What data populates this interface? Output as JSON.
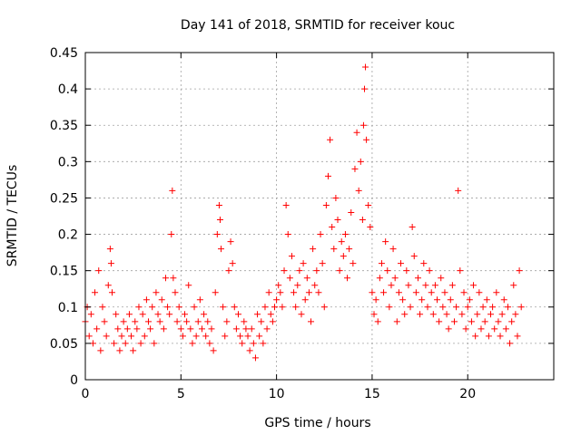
{
  "chart_data": {
    "type": "scatter",
    "title": "Day 141 of 2018, SRMTID for receiver kouc",
    "xlabel": "GPS time / hours",
    "ylabel": "SRMTID / TECUs",
    "xlim": [
      0,
      24.5
    ],
    "ylim": [
      0,
      0.45
    ],
    "xticks": [
      0,
      5,
      10,
      15,
      20
    ],
    "yticks": [
      0,
      0.05,
      0.1,
      0.15,
      0.2,
      0.25,
      0.3,
      0.35,
      0.4,
      0.45
    ],
    "xtick_labels": [
      "0",
      "5",
      "10",
      "15",
      "20"
    ],
    "ytick_labels": [
      "0",
      "0.05",
      "0.1",
      "0.15",
      "0.2",
      "0.25",
      "0.3",
      "0.35",
      "0.4",
      "0.45"
    ],
    "grid": true,
    "marker": "+",
    "color": "#ff0000",
    "series": [
      {
        "name": "SRMTID",
        "x": [
          0.0,
          0.1,
          0.2,
          0.3,
          0.4,
          0.5,
          0.6,
          0.7,
          0.8,
          0.9,
          1.0,
          1.1,
          1.2,
          1.3,
          1.35,
          1.4,
          1.5,
          1.6,
          1.7,
          1.8,
          1.9,
          2.0,
          2.1,
          2.2,
          2.3,
          2.4,
          2.5,
          2.6,
          2.7,
          2.8,
          2.9,
          3.0,
          3.1,
          3.2,
          3.3,
          3.4,
          3.5,
          3.6,
          3.7,
          3.8,
          3.9,
          4.0,
          4.1,
          4.2,
          4.3,
          4.4,
          4.5,
          4.55,
          4.6,
          4.7,
          4.8,
          4.9,
          5.0,
          5.1,
          5.2,
          5.3,
          5.4,
          5.5,
          5.6,
          5.7,
          5.8,
          5.9,
          6.0,
          6.1,
          6.2,
          6.3,
          6.4,
          6.5,
          6.6,
          6.7,
          6.8,
          6.9,
          7.0,
          7.05,
          7.1,
          7.2,
          7.3,
          7.4,
          7.5,
          7.6,
          7.7,
          7.8,
          7.9,
          8.0,
          8.1,
          8.2,
          8.3,
          8.4,
          8.5,
          8.6,
          8.7,
          8.8,
          8.9,
          9.0,
          9.1,
          9.2,
          9.3,
          9.4,
          9.5,
          9.6,
          9.7,
          9.8,
          9.9,
          10.0,
          10.1,
          10.2,
          10.3,
          10.4,
          10.5,
          10.6,
          10.7,
          10.8,
          10.9,
          11.0,
          11.1,
          11.2,
          11.3,
          11.4,
          11.5,
          11.6,
          11.7,
          11.8,
          11.9,
          12.0,
          12.1,
          12.2,
          12.3,
          12.4,
          12.5,
          12.6,
          12.7,
          12.8,
          12.9,
          13.0,
          13.1,
          13.2,
          13.3,
          13.4,
          13.5,
          13.6,
          13.7,
          13.8,
          13.9,
          14.0,
          14.1,
          14.2,
          14.3,
          14.4,
          14.5,
          14.55,
          14.6,
          14.65,
          14.7,
          14.8,
          14.9,
          15.0,
          15.1,
          15.2,
          15.3,
          15.4,
          15.5,
          15.6,
          15.7,
          15.8,
          15.9,
          16.0,
          16.1,
          16.2,
          16.3,
          16.4,
          16.5,
          16.6,
          16.7,
          16.8,
          16.9,
          17.0,
          17.1,
          17.2,
          17.3,
          17.4,
          17.5,
          17.6,
          17.7,
          17.8,
          17.9,
          18.0,
          18.1,
          18.2,
          18.3,
          18.4,
          18.5,
          18.6,
          18.7,
          18.8,
          18.9,
          19.0,
          19.1,
          19.2,
          19.3,
          19.4,
          19.5,
          19.6,
          19.7,
          19.8,
          19.9,
          20.0,
          20.1,
          20.2,
          20.3,
          20.4,
          20.5,
          20.6,
          20.7,
          20.8,
          20.9,
          21.0,
          21.1,
          21.2,
          21.3,
          21.4,
          21.5,
          21.6,
          21.7,
          21.8,
          21.9,
          22.0,
          22.1,
          22.2,
          22.3,
          22.4,
          22.5,
          22.6,
          22.7,
          22.8
        ],
        "y": [
          0.08,
          0.1,
          0.06,
          0.09,
          0.05,
          0.12,
          0.07,
          0.15,
          0.04,
          0.1,
          0.08,
          0.06,
          0.13,
          0.18,
          0.16,
          0.12,
          0.05,
          0.09,
          0.07,
          0.04,
          0.06,
          0.08,
          0.05,
          0.07,
          0.09,
          0.06,
          0.04,
          0.08,
          0.07,
          0.1,
          0.05,
          0.09,
          0.06,
          0.11,
          0.08,
          0.07,
          0.1,
          0.05,
          0.12,
          0.09,
          0.08,
          0.11,
          0.07,
          0.14,
          0.1,
          0.09,
          0.2,
          0.26,
          0.14,
          0.12,
          0.08,
          0.1,
          0.07,
          0.06,
          0.09,
          0.08,
          0.13,
          0.07,
          0.05,
          0.1,
          0.06,
          0.08,
          0.11,
          0.07,
          0.09,
          0.06,
          0.08,
          0.05,
          0.07,
          0.04,
          0.12,
          0.2,
          0.24,
          0.22,
          0.18,
          0.1,
          0.06,
          0.08,
          0.15,
          0.19,
          0.16,
          0.1,
          0.07,
          0.09,
          0.06,
          0.05,
          0.08,
          0.07,
          0.06,
          0.04,
          0.07,
          0.05,
          0.03,
          0.09,
          0.06,
          0.08,
          0.05,
          0.1,
          0.07,
          0.12,
          0.09,
          0.08,
          0.1,
          0.11,
          0.13,
          0.12,
          0.1,
          0.15,
          0.24,
          0.2,
          0.14,
          0.17,
          0.12,
          0.1,
          0.13,
          0.15,
          0.09,
          0.16,
          0.11,
          0.14,
          0.12,
          0.08,
          0.18,
          0.13,
          0.15,
          0.12,
          0.2,
          0.16,
          0.1,
          0.24,
          0.28,
          0.33,
          0.21,
          0.18,
          0.25,
          0.22,
          0.15,
          0.19,
          0.17,
          0.2,
          0.14,
          0.18,
          0.23,
          0.16,
          0.29,
          0.34,
          0.26,
          0.3,
          0.22,
          0.35,
          0.4,
          0.43,
          0.33,
          0.24,
          0.21,
          0.12,
          0.09,
          0.11,
          0.08,
          0.14,
          0.16,
          0.12,
          0.19,
          0.15,
          0.1,
          0.13,
          0.18,
          0.14,
          0.08,
          0.12,
          0.16,
          0.11,
          0.09,
          0.15,
          0.13,
          0.1,
          0.21,
          0.17,
          0.12,
          0.14,
          0.09,
          0.11,
          0.16,
          0.13,
          0.1,
          0.15,
          0.12,
          0.09,
          0.13,
          0.11,
          0.08,
          0.14,
          0.1,
          0.12,
          0.09,
          0.07,
          0.11,
          0.13,
          0.08,
          0.1,
          0.26,
          0.15,
          0.09,
          0.12,
          0.07,
          0.1,
          0.11,
          0.08,
          0.13,
          0.06,
          0.09,
          0.12,
          0.07,
          0.1,
          0.08,
          0.11,
          0.06,
          0.09,
          0.1,
          0.07,
          0.12,
          0.08,
          0.06,
          0.09,
          0.11,
          0.07,
          0.1,
          0.05,
          0.08,
          0.13,
          0.09,
          0.06,
          0.15,
          0.1
        ]
      }
    ]
  }
}
